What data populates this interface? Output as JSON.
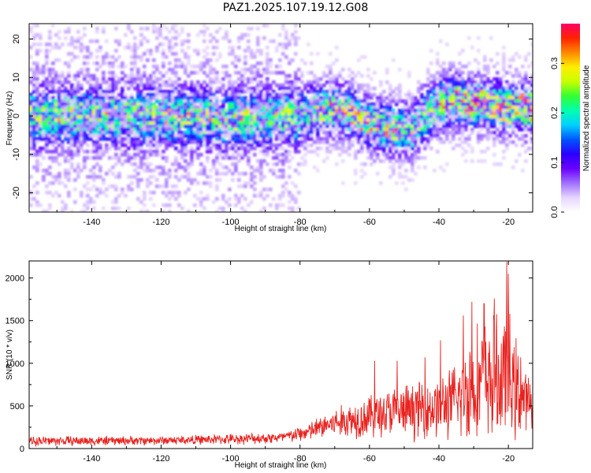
{
  "title": "PAZ1.2025.107.19.12.G08",
  "chart_data": [
    {
      "type": "heatmap",
      "xlabel": "Height of straight line (km)",
      "ylabel": "Frequency (Hz)",
      "xlim": [
        -158,
        -13
      ],
      "ylim": [
        -25,
        24
      ],
      "xticks": [
        -140,
        -120,
        -100,
        -80,
        -60,
        -40,
        -20
      ],
      "yticks": [
        -20,
        -10,
        0,
        10,
        20
      ],
      "colorbar": {
        "label": "Normalized spectral amplitude",
        "range": [
          0,
          0.38
        ],
        "ticks": [
          0.0,
          0.1,
          0.2,
          0.3
        ],
        "colormap": [
          "#ffffff",
          "#e6d5ff",
          "#a070ff",
          "#6a00ff",
          "#2a00ff",
          "#0055ff",
          "#00d0ff",
          "#00ffb0",
          "#33ff33",
          "#c8ff00",
          "#ffee00",
          "#ff8800",
          "#ff2200",
          "#ff0066"
        ]
      },
      "ridge": [
        {
          "x": -158,
          "y": 0
        },
        {
          "x": -140,
          "y": 0
        },
        {
          "x": -120,
          "y": 0
        },
        {
          "x": -100,
          "y": -1
        },
        {
          "x": -90,
          "y": -0.5
        },
        {
          "x": -80,
          "y": 0
        },
        {
          "x": -72,
          "y": 2
        },
        {
          "x": -66,
          "y": 1
        },
        {
          "x": -60,
          "y": -2
        },
        {
          "x": -55,
          "y": -3
        },
        {
          "x": -48,
          "y": -4
        },
        {
          "x": -42,
          "y": 2
        },
        {
          "x": -35,
          "y": 4
        },
        {
          "x": -30,
          "y": 3
        },
        {
          "x": -25,
          "y": 3
        },
        {
          "x": -20,
          "y": 2
        },
        {
          "x": -13,
          "y": 2
        }
      ],
      "grid": false
    },
    {
      "type": "line",
      "xlabel": "Height of straight line (km)",
      "ylabel": "SNR (10 * v/v)",
      "xlim": [
        -158,
        -13
      ],
      "ylim": [
        0,
        2200
      ],
      "xticks": [
        -140,
        -120,
        -100,
        -80,
        -60,
        -40,
        -20
      ],
      "yticks": [
        0,
        500,
        1000,
        1500,
        2000
      ],
      "series": [
        {
          "color": "#e8221e",
          "envelope": [
            {
              "x": -158,
              "mean": 90,
              "amp": 70
            },
            {
              "x": -140,
              "mean": 90,
              "amp": 65
            },
            {
              "x": -120,
              "mean": 95,
              "amp": 60
            },
            {
              "x": -100,
              "mean": 110,
              "amp": 70
            },
            {
              "x": -85,
              "mean": 130,
              "amp": 80
            },
            {
              "x": -78,
              "mean": 190,
              "amp": 120
            },
            {
              "x": -72,
              "mean": 280,
              "amp": 180
            },
            {
              "x": -65,
              "mean": 340,
              "amp": 260
            },
            {
              "x": -60,
              "mean": 380,
              "amp": 300
            },
            {
              "x": -55,
              "mean": 420,
              "amp": 340
            },
            {
              "x": -50,
              "mean": 430,
              "amp": 360
            },
            {
              "x": -45,
              "mean": 470,
              "amp": 400
            },
            {
              "x": -40,
              "mean": 480,
              "amp": 420
            },
            {
              "x": -35,
              "mean": 560,
              "amp": 520
            },
            {
              "x": -30,
              "mean": 750,
              "amp": 800
            },
            {
              "x": -25,
              "mean": 800,
              "amp": 850
            },
            {
              "x": -20,
              "mean": 800,
              "amp": 950
            },
            {
              "x": -16,
              "mean": 600,
              "amp": 500
            },
            {
              "x": -13,
              "mean": 480,
              "amp": 300
            }
          ],
          "peaks": [
            {
              "x": -58.5,
              "y": 1030
            },
            {
              "x": -52,
              "y": 1030
            },
            {
              "x": -44,
              "y": 1070
            },
            {
              "x": -39.5,
              "y": 1270
            },
            {
              "x": -33,
              "y": 1560
            },
            {
              "x": -30.5,
              "y": 1720
            },
            {
              "x": -27,
              "y": 1700
            },
            {
              "x": -24,
              "y": 1760
            },
            {
              "x": -20.5,
              "y": 2190
            },
            {
              "x": -20,
              "y": 2050
            },
            {
              "x": -16.5,
              "y": 1070
            }
          ]
        }
      ],
      "grid": false
    }
  ]
}
